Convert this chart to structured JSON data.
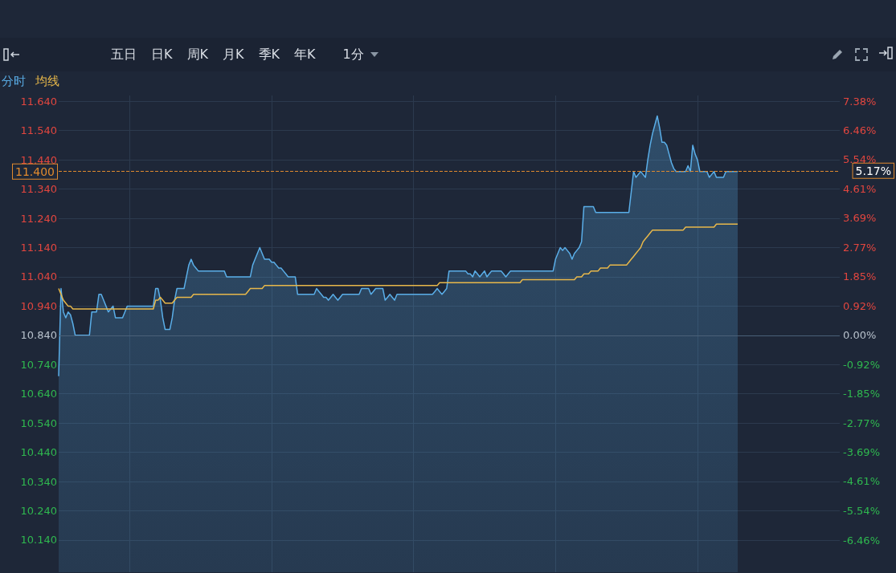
{
  "chart_data": {
    "type": "line",
    "annotations": [
      "五日",
      "日K",
      "周K",
      "月K",
      "季K",
      "年K",
      "1分",
      "5.17%"
    ],
    "categories": [
      null,
      null,
      null,
      null,
      null,
      null,
      null,
      null,
      null,
      null,
      null,
      null,
      null,
      null,
      null,
      null,
      null,
      null,
      null,
      null,
      null,
      null,
      null,
      null,
      null,
      null,
      null,
      null,
      null,
      null,
      null,
      null,
      null,
      null,
      null,
      null,
      null,
      null,
      null,
      null,
      null,
      null,
      null,
      null,
      null,
      null,
      null,
      null,
      null,
      null,
      null,
      null,
      null,
      null,
      null,
      null,
      null,
      null,
      null,
      null,
      null,
      null,
      null,
      null,
      null,
      null,
      null,
      null,
      null,
      null,
      null,
      null,
      null,
      null,
      null,
      null,
      null,
      null,
      null,
      null,
      null,
      null,
      null,
      null,
      null,
      null,
      null,
      null,
      null,
      null,
      null,
      null,
      null,
      null,
      null,
      null,
      null,
      null,
      null,
      null,
      null,
      null,
      null,
      null,
      null,
      null,
      null,
      null,
      null,
      null,
      null,
      null,
      null,
      null,
      null,
      null,
      null,
      null,
      null,
      null,
      null,
      null,
      null,
      null,
      null,
      null,
      null,
      null,
      null,
      null,
      null,
      null,
      null,
      null,
      null,
      null,
      null,
      null,
      null,
      null,
      null,
      null,
      null,
      null,
      null,
      null,
      null,
      null,
      null,
      null,
      null,
      null,
      null,
      null,
      null,
      null,
      null,
      null,
      null,
      null,
      null,
      null,
      null,
      null,
      null,
      null,
      null,
      null,
      null,
      null,
      null,
      null,
      null,
      null,
      null,
      null,
      null,
      null,
      null,
      null,
      null,
      null,
      null,
      null,
      null,
      null,
      null,
      null,
      null,
      null,
      null,
      null,
      null,
      null,
      null,
      null,
      null,
      null,
      null,
      null,
      null,
      null,
      null,
      null,
      null,
      null,
      null,
      null,
      null,
      null,
      null,
      null,
      null,
      null,
      null,
      null,
      null,
      null,
      null,
      null,
      null,
      null,
      null,
      null,
      null,
      null,
      null,
      null,
      null,
      null,
      null,
      null,
      null,
      null,
      null,
      null,
      null,
      null,
      null,
      null,
      null,
      null,
      null,
      null,
      null,
      null,
      null,
      null,
      null,
      null,
      null,
      null,
      null,
      null,
      null,
      null,
      null,
      null,
      null,
      null,
      null,
      null,
      null,
      null,
      null,
      null,
      null,
      null,
      null,
      null,
      null,
      null,
      null,
      null,
      null,
      null,
      null,
      null,
      null,
      null,
      null,
      null,
      null,
      null,
      null,
      null,
      null,
      null
    ],
    "ylim": [
      10.03,
      11.66
    ],
    "yticks": [
      {
        "value": 11.64,
        "label": "11.640"
      },
      {
        "value": 11.54,
        "label": "11.540"
      },
      {
        "value": 11.44,
        "label": "11.440"
      },
      {
        "value": 11.34,
        "label": "11.340"
      },
      {
        "value": 11.24,
        "label": "11.240"
      },
      {
        "value": 11.14,
        "label": "11.140"
      },
      {
        "value": 11.04,
        "label": "11.040"
      },
      {
        "value": 10.94,
        "label": "10.940"
      },
      {
        "value": 10.84,
        "label": "10.840"
      },
      {
        "value": 10.74,
        "label": "10.740"
      },
      {
        "value": 10.64,
        "label": "10.640"
      },
      {
        "value": 10.54,
        "label": "10.540"
      },
      {
        "value": 10.44,
        "label": "10.440"
      },
      {
        "value": 10.34,
        "label": "10.340"
      },
      {
        "value": 10.24,
        "label": "10.240"
      },
      {
        "value": 10.14,
        "label": "10.140"
      }
    ],
    "y2lim": [
      -7.47,
      7.56
    ],
    "y2ticks": [
      {
        "value": 7.38,
        "label": "7.38%"
      },
      {
        "value": 6.46,
        "label": "6.46%"
      },
      {
        "value": 5.54,
        "label": "5.54%"
      },
      {
        "value": 4.61,
        "label": "4.61%"
      },
      {
        "value": 3.69,
        "label": "3.69%"
      },
      {
        "value": 2.77,
        "label": "2.77%"
      },
      {
        "value": 1.85,
        "label": "1.85%"
      },
      {
        "value": 0.92,
        "label": "0.92%"
      },
      {
        "value": 0,
        "label": "0.00%"
      },
      {
        "value": -0.92,
        "label": "-0.92%"
      },
      {
        "value": -1.85,
        "label": "-1.85%"
      },
      {
        "value": -2.77,
        "label": "-2.77%"
      },
      {
        "value": -3.69,
        "label": "-3.69%"
      },
      {
        "value": -4.61,
        "label": "-4.61%"
      },
      {
        "value": -5.54,
        "label": "-5.54%"
      },
      {
        "value": -6.46,
        "label": "-6.46%"
      }
    ],
    "tick_labels": "y",
    "grid": true,
    "ref_lines": [
      {
        "axis": "y",
        "value": 10.84,
        "label": null,
        "color": "#4a6078",
        "line_style": "solid"
      },
      {
        "axis": "y",
        "value": 11.4,
        "label": "11.400",
        "color": "#e08a2e",
        "line_style": "dashed"
      }
    ],
    "series": [
      {
        "name": "分时",
        "type": "area",
        "color": "#5aaee8",
        "values": [
          10.7,
          11.0,
          10.92,
          10.9,
          10.92,
          10.91,
          10.88,
          10.84,
          10.84,
          10.84,
          10.84,
          10.84,
          10.84,
          10.84,
          10.92,
          10.92,
          10.92,
          10.98,
          10.98,
          10.96,
          10.94,
          10.92,
          10.93,
          10.94,
          10.9,
          10.9,
          10.9,
          10.9,
          10.92,
          10.94,
          10.94,
          10.94,
          10.94,
          10.94,
          10.94,
          10.94,
          10.94,
          10.94,
          10.94,
          10.94,
          10.94,
          11.0,
          11.0,
          10.96,
          10.9,
          10.86,
          10.86,
          10.86,
          10.9,
          10.96,
          11.0,
          11.0,
          11.0,
          11.0,
          11.04,
          11.08,
          11.1,
          11.08,
          11.07,
          11.06,
          11.06,
          11.06,
          11.06,
          11.06,
          11.06,
          11.06,
          11.06,
          11.06,
          11.06,
          11.06,
          11.06,
          11.04,
          11.04,
          11.04,
          11.04,
          11.04,
          11.04,
          11.04,
          11.04,
          11.04,
          11.04,
          11.04,
          11.08,
          11.1,
          11.12,
          11.14,
          11.12,
          11.1,
          11.1,
          11.1,
          11.09,
          11.09,
          11.08,
          11.07,
          11.07,
          11.06,
          11.05,
          11.04,
          11.04,
          11.04,
          11.04,
          10.98,
          10.98,
          10.98,
          10.98,
          10.98,
          10.98,
          10.98,
          10.98,
          11.0,
          10.99,
          10.98,
          10.97,
          10.97,
          10.96,
          10.97,
          10.98,
          10.97,
          10.96,
          10.97,
          10.98,
          10.98,
          10.98,
          10.98,
          10.98,
          10.98,
          10.98,
          10.98,
          11.0,
          11.0,
          11.0,
          11.0,
          10.98,
          10.99,
          11.0,
          11.0,
          11.0,
          11.0,
          10.96,
          10.97,
          10.98,
          10.97,
          10.96,
          10.98,
          10.98,
          10.98,
          10.98,
          10.98,
          10.98,
          10.98,
          10.98,
          10.98,
          10.98,
          10.98,
          10.98,
          10.98,
          10.98,
          10.98,
          10.98,
          10.99,
          11.0,
          10.99,
          10.98,
          10.99,
          11.0,
          11.06,
          11.06,
          11.06,
          11.06,
          11.06,
          11.06,
          11.06,
          11.06,
          11.05,
          11.05,
          11.04,
          11.06,
          11.05,
          11.04,
          11.05,
          11.06,
          11.04,
          11.05,
          11.06,
          11.06,
          11.06,
          11.06,
          11.06,
          11.05,
          11.04,
          11.05,
          11.06,
          11.06,
          11.06,
          11.06,
          11.06,
          11.06,
          11.06,
          11.06,
          11.06,
          11.06,
          11.06,
          11.06,
          11.06,
          11.06,
          11.06,
          11.06,
          11.06,
          11.06,
          11.06,
          11.1,
          11.12,
          11.14,
          11.13,
          11.14,
          11.13,
          11.12,
          11.1,
          11.12,
          11.13,
          11.14,
          11.16,
          11.28,
          11.28,
          11.28,
          11.28,
          11.28,
          11.26,
          11.26,
          11.26,
          11.26,
          11.26,
          11.26,
          11.26,
          11.26,
          11.26,
          11.26,
          11.26,
          11.26,
          11.26,
          11.26,
          11.26,
          11.33,
          11.4,
          11.38,
          11.39,
          11.4,
          11.39,
          11.38,
          11.44,
          11.49,
          11.53,
          11.56,
          11.59,
          11.55,
          11.5,
          11.5,
          11.49,
          11.46,
          11.43,
          11.41,
          11.4,
          11.4,
          11.4,
          11.4,
          11.4,
          11.42,
          11.4,
          11.49,
          11.46,
          11.44,
          11.4,
          11.4,
          11.4,
          11.4,
          11.38,
          11.39,
          11.4,
          11.38,
          11.38,
          11.38,
          11.38,
          11.4,
          11.4,
          11.4,
          11.4,
          11.4,
          11.4
        ]
      },
      {
        "name": "均线",
        "color": "#e8b84a",
        "values": [
          11.0,
          10.98,
          10.96,
          10.95,
          10.94,
          10.94,
          10.93,
          10.93,
          10.93,
          10.93,
          10.93,
          10.93,
          10.93,
          10.93,
          10.93,
          10.93,
          10.93,
          10.93,
          10.93,
          10.93,
          10.93,
          10.93,
          10.93,
          10.93,
          10.93,
          10.93,
          10.93,
          10.93,
          10.93,
          10.93,
          10.93,
          10.93,
          10.93,
          10.93,
          10.93,
          10.93,
          10.93,
          10.93,
          10.93,
          10.93,
          10.93,
          10.96,
          10.96,
          10.97,
          10.96,
          10.95,
          10.95,
          10.95,
          10.95,
          10.96,
          10.97,
          10.97,
          10.97,
          10.97,
          10.97,
          10.97,
          10.97,
          10.98,
          10.98,
          10.98,
          10.98,
          10.98,
          10.98,
          10.98,
          10.98,
          10.98,
          10.98,
          10.98,
          10.98,
          10.98,
          10.98,
          10.98,
          10.98,
          10.98,
          10.98,
          10.98,
          10.98,
          10.98,
          10.98,
          10.98,
          10.99,
          11.0,
          11.0,
          11.0,
          11.0,
          11.0,
          11.0,
          11.01,
          11.01,
          11.01,
          11.01,
          11.01,
          11.01,
          11.01,
          11.01,
          11.01,
          11.01,
          11.01,
          11.01,
          11.01,
          11.01,
          11.01,
          11.01,
          11.01,
          11.01,
          11.01,
          11.01,
          11.01,
          11.01,
          11.01,
          11.01,
          11.01,
          11.01,
          11.01,
          11.01,
          11.01,
          11.01,
          11.01,
          11.01,
          11.01,
          11.01,
          11.01,
          11.01,
          11.01,
          11.01,
          11.01,
          11.01,
          11.01,
          11.01,
          11.01,
          11.01,
          11.01,
          11.01,
          11.01,
          11.01,
          11.01,
          11.01,
          11.01,
          11.01,
          11.01,
          11.01,
          11.01,
          11.01,
          11.01,
          11.01,
          11.01,
          11.01,
          11.01,
          11.01,
          11.01,
          11.01,
          11.01,
          11.01,
          11.01,
          11.01,
          11.01,
          11.01,
          11.01,
          11.01,
          11.01,
          11.01,
          11.02,
          11.02,
          11.02,
          11.02,
          11.02,
          11.02,
          11.02,
          11.02,
          11.02,
          11.02,
          11.02,
          11.02,
          11.02,
          11.02,
          11.02,
          11.02,
          11.02,
          11.02,
          11.02,
          11.02,
          11.02,
          11.02,
          11.02,
          11.02,
          11.02,
          11.02,
          11.02,
          11.02,
          11.02,
          11.02,
          11.02,
          11.02,
          11.02,
          11.02,
          11.02,
          11.03,
          11.03,
          11.03,
          11.03,
          11.03,
          11.03,
          11.03,
          11.03,
          11.03,
          11.03,
          11.03,
          11.03,
          11.03,
          11.03,
          11.03,
          11.03,
          11.03,
          11.03,
          11.03,
          11.03,
          11.03,
          11.03,
          11.03,
          11.04,
          11.04,
          11.04,
          11.05,
          11.05,
          11.05,
          11.06,
          11.06,
          11.06,
          11.06,
          11.07,
          11.07,
          11.07,
          11.07,
          11.08,
          11.08,
          11.08,
          11.08,
          11.08,
          11.08,
          11.08,
          11.08,
          11.09,
          11.1,
          11.11,
          11.12,
          11.13,
          11.14,
          11.16,
          11.17,
          11.18,
          11.19,
          11.2,
          11.2,
          11.2,
          11.2,
          11.2,
          11.2,
          11.2,
          11.2,
          11.2,
          11.2,
          11.2,
          11.2,
          11.2,
          11.2,
          11.21,
          11.21,
          11.21,
          11.21,
          11.21,
          11.21,
          11.21,
          11.21,
          11.21,
          11.21,
          11.21,
          11.21,
          11.21,
          11.22,
          11.22,
          11.22,
          11.22,
          11.22,
          11.22,
          11.22,
          11.22,
          11.22,
          11.22
        ]
      }
    ]
  }
}
